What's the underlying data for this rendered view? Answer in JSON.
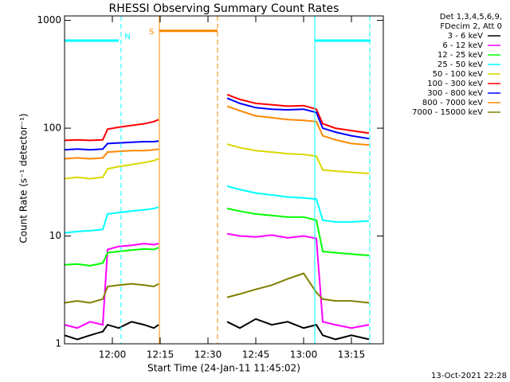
{
  "chart_data": {
    "type": "line",
    "title": "RHESSI Observing Summary Count Rates",
    "xlabel": "Start Time (24-Jan-11 11:45:02)",
    "ylabel": "Count Rate (s⁻¹ detector⁻¹)",
    "log_y": true,
    "xlim": [
      0,
      100
    ],
    "ylim": [
      1,
      1100
    ],
    "xticks": [
      {
        "value": 15,
        "label": "12:00"
      },
      {
        "value": 30,
        "label": "12:15"
      },
      {
        "value": 45,
        "label": "12:30"
      },
      {
        "value": 60,
        "label": "12:45"
      },
      {
        "value": 75,
        "label": "13:00"
      },
      {
        "value": 90,
        "label": "13:15"
      }
    ],
    "yticks": [
      1,
      10,
      100,
      1000
    ],
    "legend_header": [
      "Det 1,3,4,5,6,9,",
      "FDecim 2, Att 0"
    ],
    "legend_position": "right",
    "footer": "13-Oct-2021 22:28",
    "x": [
      0,
      4,
      8,
      12,
      13.5,
      17,
      21,
      25,
      28,
      29.5,
      40,
      51,
      55,
      60,
      65,
      70,
      75,
      79,
      81,
      85,
      90,
      95.5
    ],
    "series": [
      {
        "name": "3 - 6 keV",
        "color": "#000000",
        "values": [
          1.2,
          1.1,
          1.2,
          1.3,
          1.5,
          1.4,
          1.6,
          1.5,
          1.4,
          1.5,
          null,
          1.6,
          1.4,
          1.7,
          1.5,
          1.6,
          1.4,
          1.5,
          1.2,
          1.1,
          1.2,
          1.1
        ]
      },
      {
        "name": "6 - 12 keV",
        "color": "#ff00ff",
        "values": [
          1.5,
          1.4,
          1.6,
          1.5,
          7.5,
          8,
          8.2,
          8.5,
          8.3,
          8.5,
          null,
          10.5,
          10,
          9.8,
          10.2,
          9.6,
          10,
          9.5,
          1.6,
          1.5,
          1.4,
          1.5
        ]
      },
      {
        "name": "12 - 25 keV",
        "color": "#00ff00",
        "values": [
          5.4,
          5.5,
          5.3,
          5.6,
          7,
          7.2,
          7.4,
          7.6,
          7.5,
          7.8,
          null,
          18,
          17,
          16,
          15.5,
          15,
          15,
          14,
          7.2,
          7,
          6.8,
          6.6
        ]
      },
      {
        "name": "25 - 50 keV",
        "color": "#00ffff",
        "values": [
          10.7,
          11,
          11.2,
          11.5,
          16,
          16.5,
          17,
          17.5,
          18,
          18.5,
          null,
          29,
          27,
          25,
          24,
          23,
          22.5,
          22,
          14,
          13.5,
          13.5,
          13.8
        ]
      },
      {
        "name": "50 - 100 keV",
        "color": "#d8d800",
        "values": [
          34,
          35,
          34,
          35,
          42,
          44,
          46,
          48,
          50,
          52,
          null,
          71,
          66,
          62,
          60,
          58,
          57,
          55,
          41,
          40,
          39,
          38
        ]
      },
      {
        "name": "100 - 300 keV",
        "color": "#ff0000",
        "values": [
          77,
          78,
          77,
          78,
          98,
          102,
          106,
          110,
          115,
          120,
          null,
          205,
          185,
          170,
          165,
          160,
          162,
          150,
          110,
          100,
          95,
          90
        ]
      },
      {
        "name": "300 - 800 keV",
        "color": "#0000ff",
        "values": [
          63,
          64,
          63,
          64,
          72,
          73,
          74,
          75,
          75,
          76,
          null,
          190,
          170,
          155,
          150,
          148,
          150,
          140,
          100,
          92,
          85,
          80
        ]
      },
      {
        "name": "800 - 7000 keV",
        "color": "#ff8800",
        "values": [
          52,
          53,
          52,
          53,
          60,
          61,
          62,
          62,
          63,
          64,
          null,
          160,
          145,
          130,
          125,
          120,
          118,
          115,
          85,
          78,
          72,
          70
        ]
      },
      {
        "name": "7000 - 15000 keV",
        "color": "#808000",
        "values": [
          2.4,
          2.5,
          2.4,
          2.6,
          3.4,
          3.5,
          3.6,
          3.5,
          3.4,
          3.6,
          null,
          2.7,
          2.9,
          3.2,
          3.5,
          4,
          4.5,
          3,
          2.6,
          2.5,
          2.5,
          2.4
        ]
      }
    ],
    "flags": [
      {
        "color": "#00ffff",
        "value": 650,
        "x": [
          0,
          17
        ]
      },
      {
        "color": "#00ffff",
        "value": 650,
        "x": [
          78.5,
          96
        ]
      },
      {
        "color": "#ff8800",
        "value": 800,
        "x": [
          29.75,
          48
        ]
      }
    ],
    "markers": [
      {
        "x": 17.75,
        "color": "#00ffff",
        "dashed": true,
        "label": "N"
      },
      {
        "x": 29.75,
        "color": "#00ffff",
        "dashed": false
      },
      {
        "x": 29.75,
        "color": "#ff8800",
        "dashed": false,
        "label": "S"
      },
      {
        "x": 48,
        "color": "#ff8800",
        "dashed": true
      },
      {
        "x": 78.5,
        "color": "#00ffff",
        "dashed": false
      },
      {
        "x": 95.75,
        "color": "#00ffff",
        "dashed": true
      }
    ]
  }
}
